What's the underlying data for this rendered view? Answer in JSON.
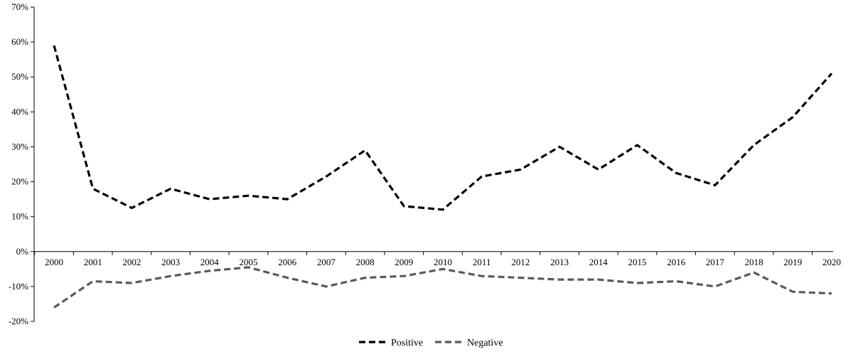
{
  "chart_data": {
    "type": "line",
    "title": "",
    "xlabel": "",
    "ylabel": "",
    "x": [
      "2000",
      "2001",
      "2002",
      "2003",
      "2004",
      "2005",
      "2006",
      "2007",
      "2008",
      "2009",
      "2010",
      "2011",
      "2012",
      "2013",
      "2014",
      "2015",
      "2016",
      "2017",
      "2018",
      "2019",
      "2020"
    ],
    "ylim": [
      -20,
      70
    ],
    "yticks": [
      70,
      60,
      50,
      40,
      30,
      20,
      10,
      0,
      -10,
      -20
    ],
    "ytick_labels": [
      "70%",
      "60%",
      "50%",
      "40%",
      "30%",
      "20%",
      "10%",
      "0%",
      "-10%",
      "-20%"
    ],
    "grid": false,
    "legend_position": "bottom-center",
    "series": [
      {
        "name": "Positive",
        "color": "#000000",
        "style": "dashed",
        "values": [
          59.0,
          18.0,
          12.5,
          18.0,
          15.0,
          16.0,
          15.0,
          21.5,
          29.0,
          13.0,
          12.0,
          21.5,
          23.5,
          30.0,
          23.5,
          30.5,
          22.5,
          19.0,
          30.5,
          38.5,
          51.0
        ]
      },
      {
        "name": "Negative",
        "color": "#595959",
        "style": "dashed",
        "values": [
          -16.0,
          -8.5,
          -9.0,
          -7.0,
          -5.5,
          -4.5,
          -7.5,
          -10.0,
          -7.5,
          -7.0,
          -5.0,
          -7.0,
          -7.5,
          -8.0,
          -8.0,
          -9.0,
          -8.5,
          -10.0,
          -6.0,
          -11.5,
          -12.0
        ]
      }
    ]
  }
}
